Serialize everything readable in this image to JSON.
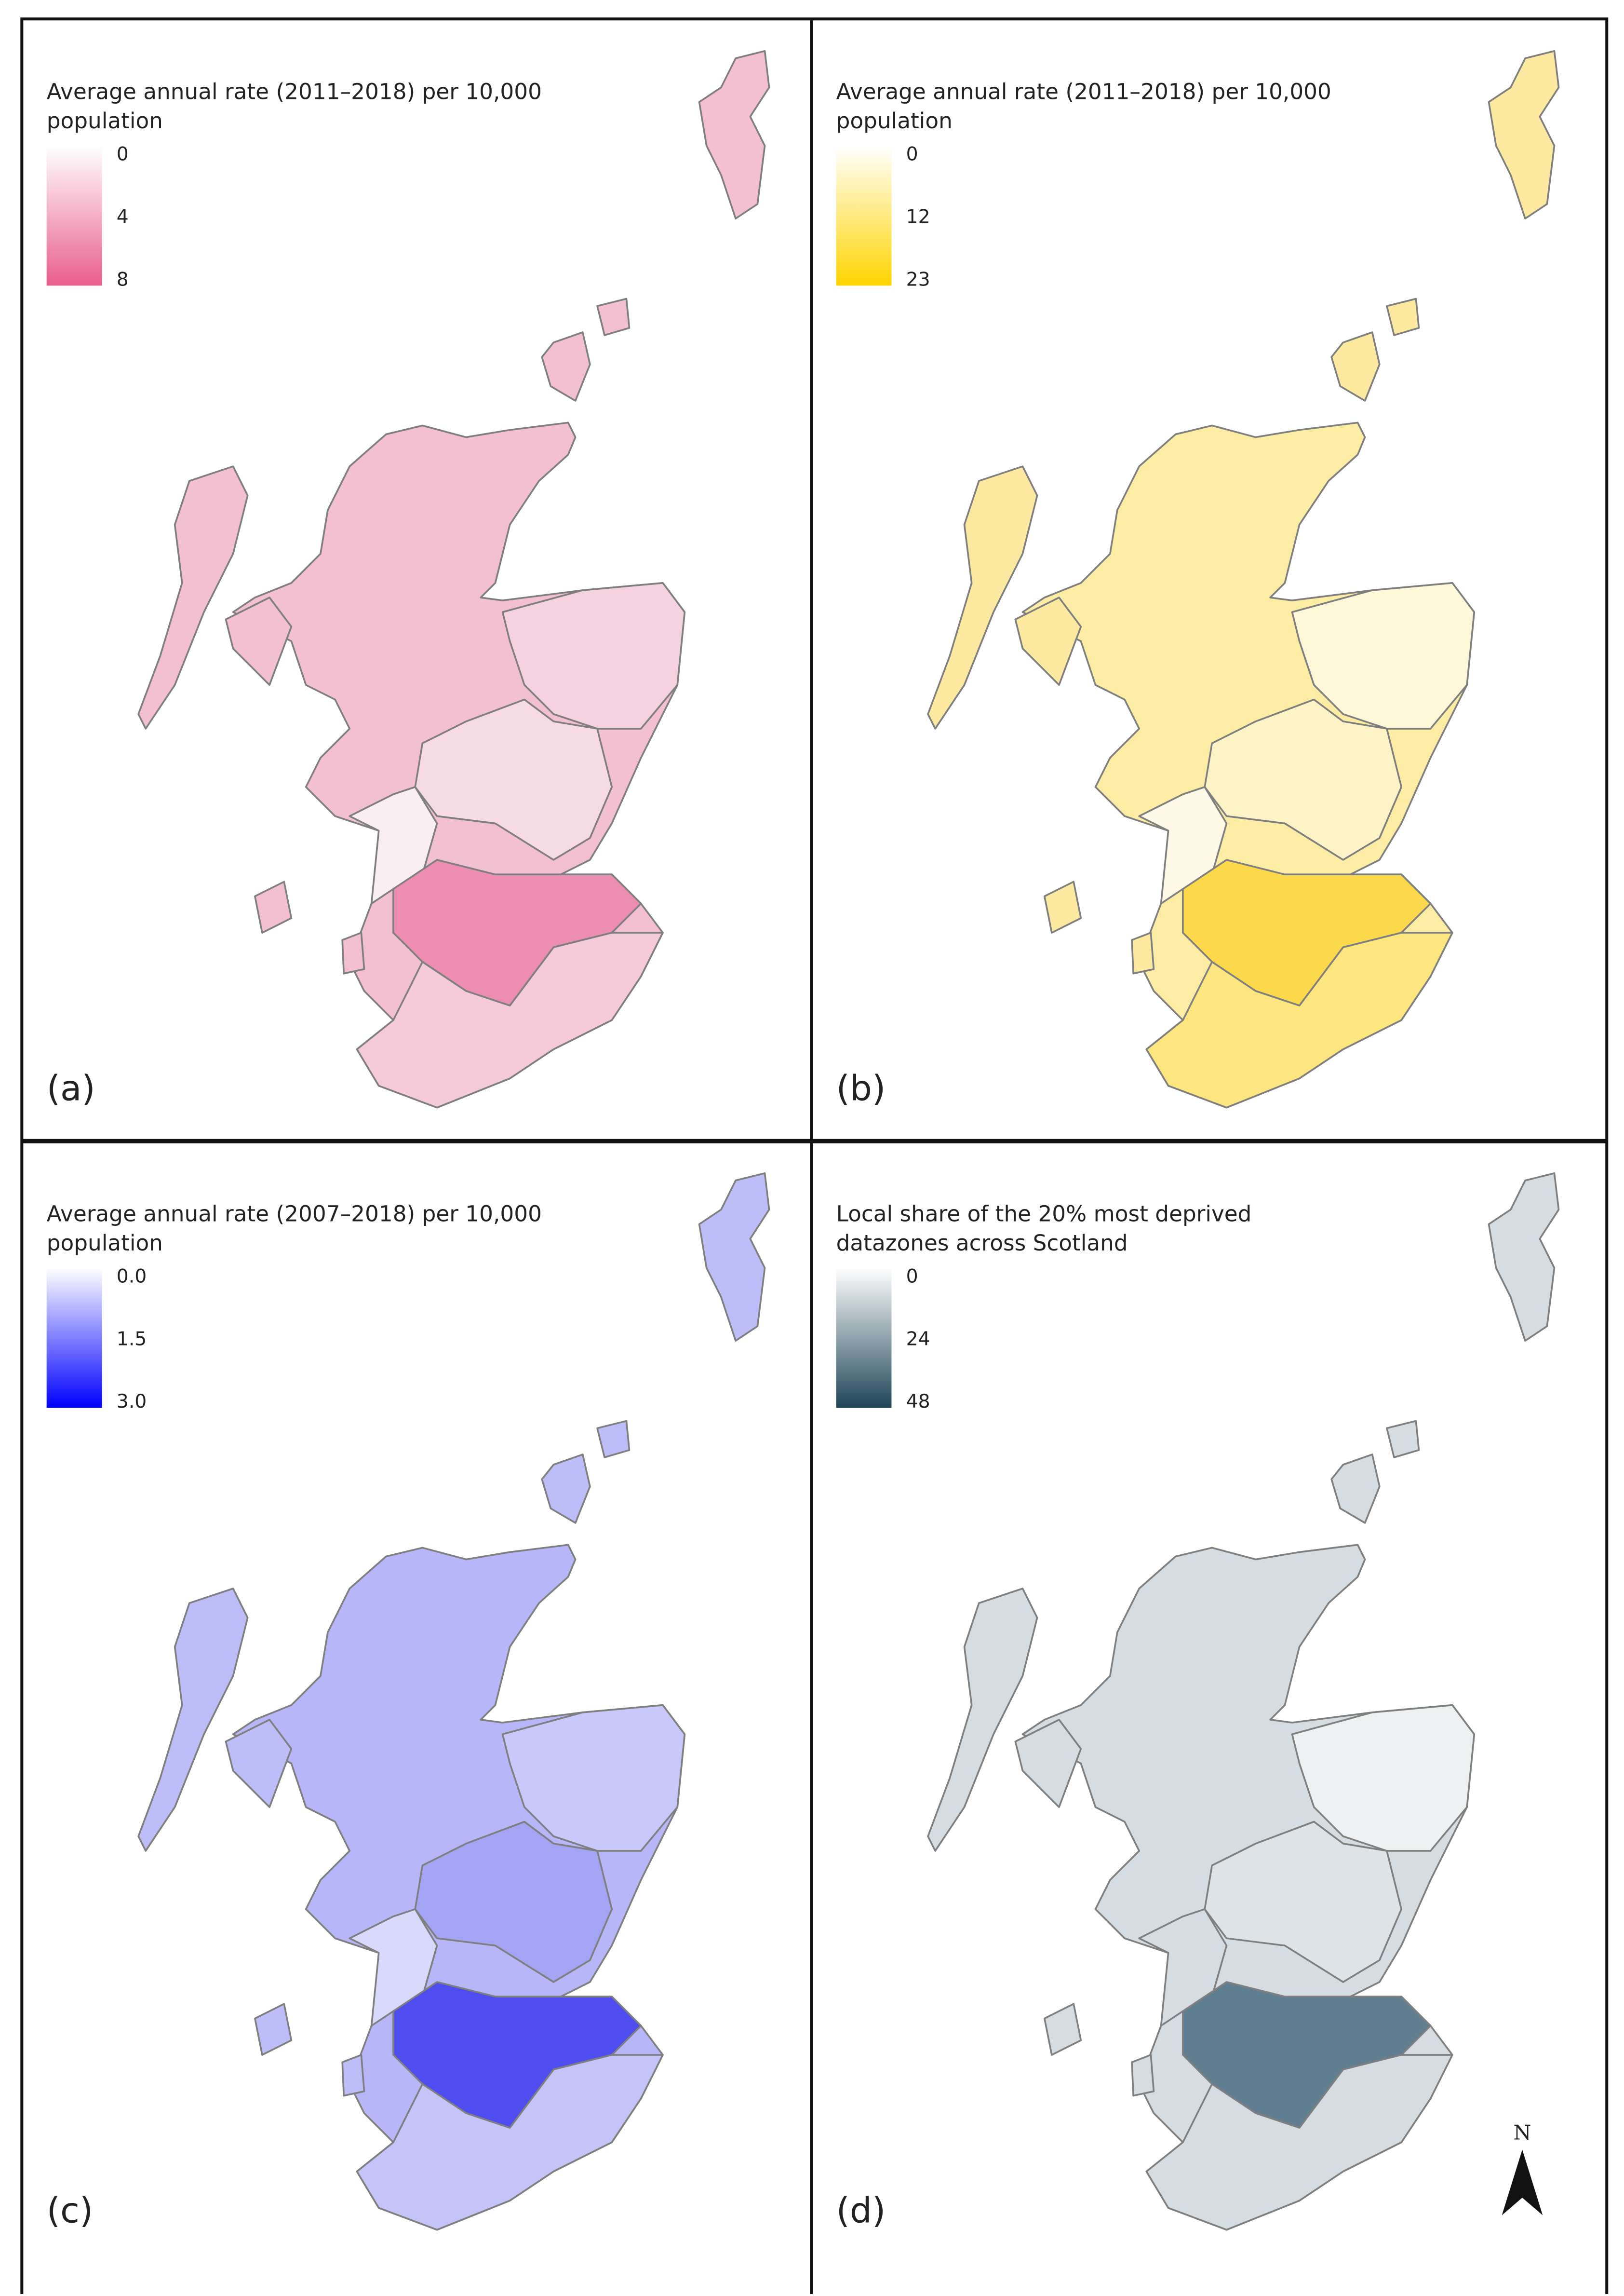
{
  "panels": [
    {
      "label": "(a)",
      "legend": {
        "title": [
          "Average annual rate (2011–2018) per 10,000",
          "population"
        ],
        "ticks": [
          "0",
          "4",
          "8"
        ],
        "gradient": [
          "#ffffff",
          "#ea5e8e"
        ]
      }
    },
    {
      "label": "(b)",
      "legend": {
        "title": [
          "Average annual rate (2011–2018) per 10,000",
          "population"
        ],
        "ticks": [
          "0",
          "12",
          "23"
        ],
        "gradient": [
          "#ffffff",
          "#ffd400"
        ]
      }
    },
    {
      "label": "(c)",
      "legend": {
        "title": [
          "Average annual rate (2007–2018) per 10,000",
          "population"
        ],
        "ticks": [
          "0.0",
          "1.5",
          "3.0"
        ],
        "gradient": [
          "#ffffff",
          "#0000ff"
        ]
      }
    },
    {
      "label": "(d)",
      "legend": {
        "title": [
          "Local share of the 20% most deprived",
          "datazones across Scotland"
        ],
        "ticks": [
          "0",
          "24",
          "48"
        ],
        "gradient": [
          "#ffffff",
          "#1f4658"
        ]
      }
    }
  ],
  "north_arrow": "N"
}
